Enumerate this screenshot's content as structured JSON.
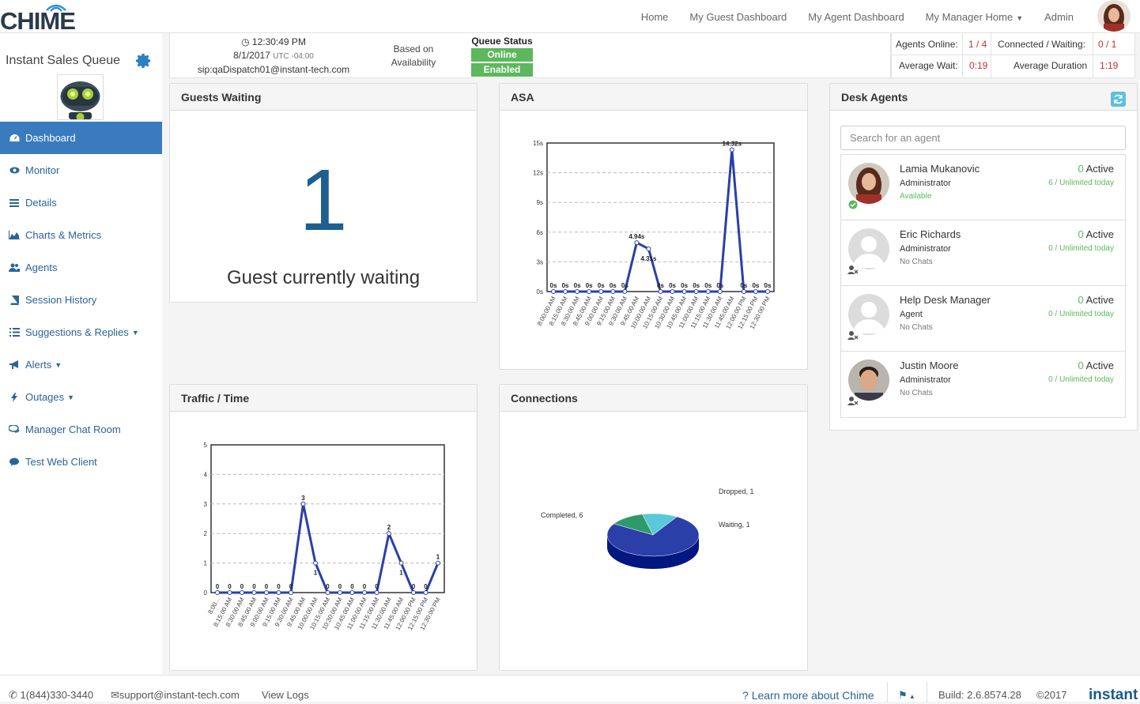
{
  "app": {
    "logo_text": "CHIME"
  },
  "nav": {
    "home": "Home",
    "guest_dashboard": "My Guest Dashboard",
    "agent_dashboard": "My Agent Dashboard",
    "manager_home": "My Manager Home",
    "admin": "Admin"
  },
  "sidebar": {
    "queue_name": "Instant Sales Queue",
    "items": [
      {
        "label": "Dashboard",
        "icon": "dashboard-icon",
        "active": true
      },
      {
        "label": "Monitor",
        "icon": "eye-icon"
      },
      {
        "label": "Details",
        "icon": "list-icon"
      },
      {
        "label": "Charts & Metrics",
        "icon": "area-chart-icon"
      },
      {
        "label": "Agents",
        "icon": "users-icon"
      },
      {
        "label": "Session History",
        "icon": "book-icon"
      },
      {
        "label": "Suggestions & Replies",
        "icon": "list-ul-icon",
        "dropdown": true
      },
      {
        "label": "Alerts",
        "icon": "bullhorn-icon",
        "dropdown": true
      },
      {
        "label": "Outages",
        "icon": "bolt-icon",
        "dropdown": true
      },
      {
        "label": "Manager Chat Room",
        "icon": "chat-icon"
      },
      {
        "label": "Test Web Client",
        "icon": "comment-icon"
      }
    ]
  },
  "status": {
    "time": "12:30:49 PM",
    "date": "8/1/2017",
    "utc": "UTC -04:00",
    "sip": "sip:qaDispatch01@instant-tech.com",
    "routing": "Based on Availability",
    "queue_status_label": "Queue Status",
    "online": "Online",
    "enabled": "Enabled",
    "agents_online_label": "Agents Online:",
    "agents_online": "1 / 4",
    "connected_label": "Connected / Waiting:",
    "connected": "0 / 1",
    "avg_wait_label": "Average Wait:",
    "avg_wait": "0:19",
    "avg_duration_label": "Average Duration",
    "avg_duration": "1:19"
  },
  "guests_waiting": {
    "title": "Guests Waiting",
    "count": "1",
    "label": "Guest currently waiting"
  },
  "asa": {
    "title": "ASA"
  },
  "traffic": {
    "title": "Traffic / Time"
  },
  "connections": {
    "title": "Connections"
  },
  "desk_agents": {
    "title": "Desk Agents",
    "search_placeholder": "Search for an agent",
    "agents": [
      {
        "name": "Lamia Mukanovic",
        "role": "Administrator",
        "status": "Available",
        "active": "0",
        "active_label": "Active",
        "today": "6 / Unlimited today"
      },
      {
        "name": "Eric Richards",
        "role": "Administrator",
        "status": "No Chats",
        "active": "0",
        "active_label": "Active",
        "today": "0 / Unlimited today"
      },
      {
        "name": "Help Desk Manager",
        "role": "Agent",
        "status": "No Chats",
        "active": "0",
        "active_label": "Active",
        "today": "0 / Unlimited today"
      },
      {
        "name": "Justin Moore",
        "role": "Administrator",
        "status": "No Chats",
        "active": "0",
        "active_label": "Active",
        "today": "0 / Unlimited today"
      }
    ]
  },
  "footer": {
    "phone": "1(844)330-3440",
    "email": "support@instant-tech.com",
    "logs": "View Logs",
    "learn": "Learn more about Chime",
    "build": "Build: 2.6.8574.28",
    "copyright": "©2017",
    "brand": "instant"
  },
  "colors": {
    "accent": "#3a7bbf",
    "online": "#5cb85c",
    "alert": "#c9302c",
    "line": "#2b3fa8"
  },
  "chart_data": [
    {
      "type": "line",
      "title": "ASA",
      "x": [
        "8:00:00 AM",
        "8:15:00 AM",
        "8:30:00 AM",
        "8:45:00 AM",
        "9:00:00 AM",
        "9:15:00 AM",
        "9:30:00 AM",
        "9:45:00 AM",
        "10:00:00 AM",
        "10:15:00 AM",
        "10:30:00 AM",
        "10:45:00 AM",
        "11:00:00 AM",
        "11:15:00 AM",
        "11:30:00 AM",
        "11:45:00 AM",
        "12:00:00 PM",
        "12:15:00 PM",
        "12:30:00 PM"
      ],
      "values": [
        0,
        0,
        0,
        0,
        0,
        0,
        0,
        4.94,
        4.31,
        0,
        0,
        0,
        0,
        0,
        0,
        14.32,
        0,
        0,
        0
      ],
      "value_labels": [
        "0s",
        "0s",
        "0s",
        "0s",
        "0s",
        "0s",
        "0s",
        "4.94s",
        "4.31s",
        "0s",
        "0s",
        "0s",
        "0s",
        "0s",
        "0s",
        "14.32s",
        "0s",
        "0s",
        "0s"
      ],
      "yticks": [
        "0s",
        "3s",
        "6s",
        "9s",
        "12s",
        "15s"
      ],
      "ylim": [
        0,
        15
      ]
    },
    {
      "type": "line",
      "title": "Traffic / Time",
      "x": [
        "8:00:00 AM",
        "8:15:00 AM",
        "8:30:00 AM",
        "8:45:00 AM",
        "9:00:00 AM",
        "9:15:00 AM",
        "9:30:00 AM",
        "9:45:00 AM",
        "10:00:00 AM",
        "10:15:00 AM",
        "10:30:00 AM",
        "10:45:00 AM",
        "11:00:00 AM",
        "11:15:00 AM",
        "11:30:00 AM",
        "11:45:00 AM",
        "12:00:00 PM",
        "12:15:00 PM",
        "12:30:00 PM"
      ],
      "x_labels": [
        "8:00...",
        "8:15:00 AM",
        "8:30:00 AM",
        "8:45:00 AM",
        "9:00:00 AM",
        "9:15:00 AM",
        "9:30:00 AM",
        "9:45:00 AM",
        "10:00:00 AM",
        "10:15:00 AM",
        "10:30:00 AM",
        "10:45:00 AM",
        "11:00:00 AM",
        "11:15:00 AM",
        "11:30:00 AM",
        "11:45:00 AM",
        "12:00:00 PM",
        "12:15:00 PM",
        "12:30:00 PM"
      ],
      "values": [
        0,
        0,
        0,
        0,
        0,
        0,
        0,
        3,
        1,
        0,
        0,
        0,
        0,
        0,
        2,
        1,
        0,
        0,
        1
      ],
      "yticks": [
        "0",
        "1",
        "2",
        "3",
        "4",
        "5"
      ],
      "ylim": [
        0,
        5
      ]
    },
    {
      "type": "pie",
      "title": "Connections",
      "slices": [
        {
          "label": "Completed, 6",
          "value": 6,
          "color": "#2b3fa8"
        },
        {
          "label": "Dropped, 1",
          "value": 1,
          "color": "#2e9a6a"
        },
        {
          "label": "Waiting, 1",
          "value": 1,
          "color": "#5ac8d8"
        }
      ]
    }
  ]
}
